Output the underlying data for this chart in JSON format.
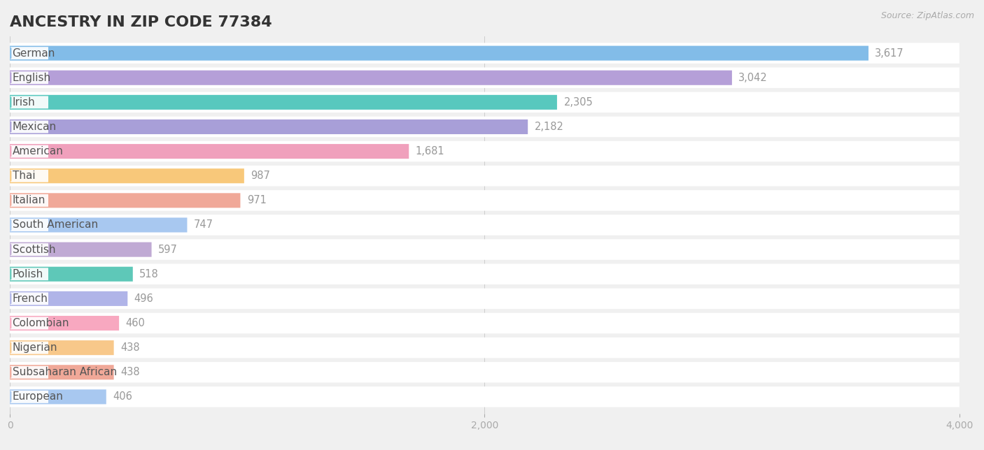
{
  "title": "ANCESTRY IN ZIP CODE 77384",
  "source": "Source: ZipAtlas.com",
  "categories": [
    "German",
    "English",
    "Irish",
    "Mexican",
    "American",
    "Thai",
    "Italian",
    "South American",
    "Scottish",
    "Polish",
    "French",
    "Colombian",
    "Nigerian",
    "Subsaharan African",
    "European"
  ],
  "values": [
    3617,
    3042,
    2305,
    2182,
    1681,
    987,
    971,
    747,
    597,
    518,
    496,
    460,
    438,
    438,
    406
  ],
  "bar_colors": [
    "#82bce8",
    "#b59fd8",
    "#58c8be",
    "#a89fd8",
    "#f0a0bc",
    "#f8c87a",
    "#f0a898",
    "#a8c8f0",
    "#c0aad4",
    "#5ec8b8",
    "#b0b4e8",
    "#f8a8c0",
    "#f8c88a",
    "#f0a898",
    "#a8c8f0"
  ],
  "xlim": [
    0,
    4000
  ],
  "xticks": [
    0,
    2000,
    4000
  ],
  "background_color": "#f0f0f0",
  "title_fontsize": 16,
  "label_fontsize": 11,
  "value_fontsize": 10.5
}
